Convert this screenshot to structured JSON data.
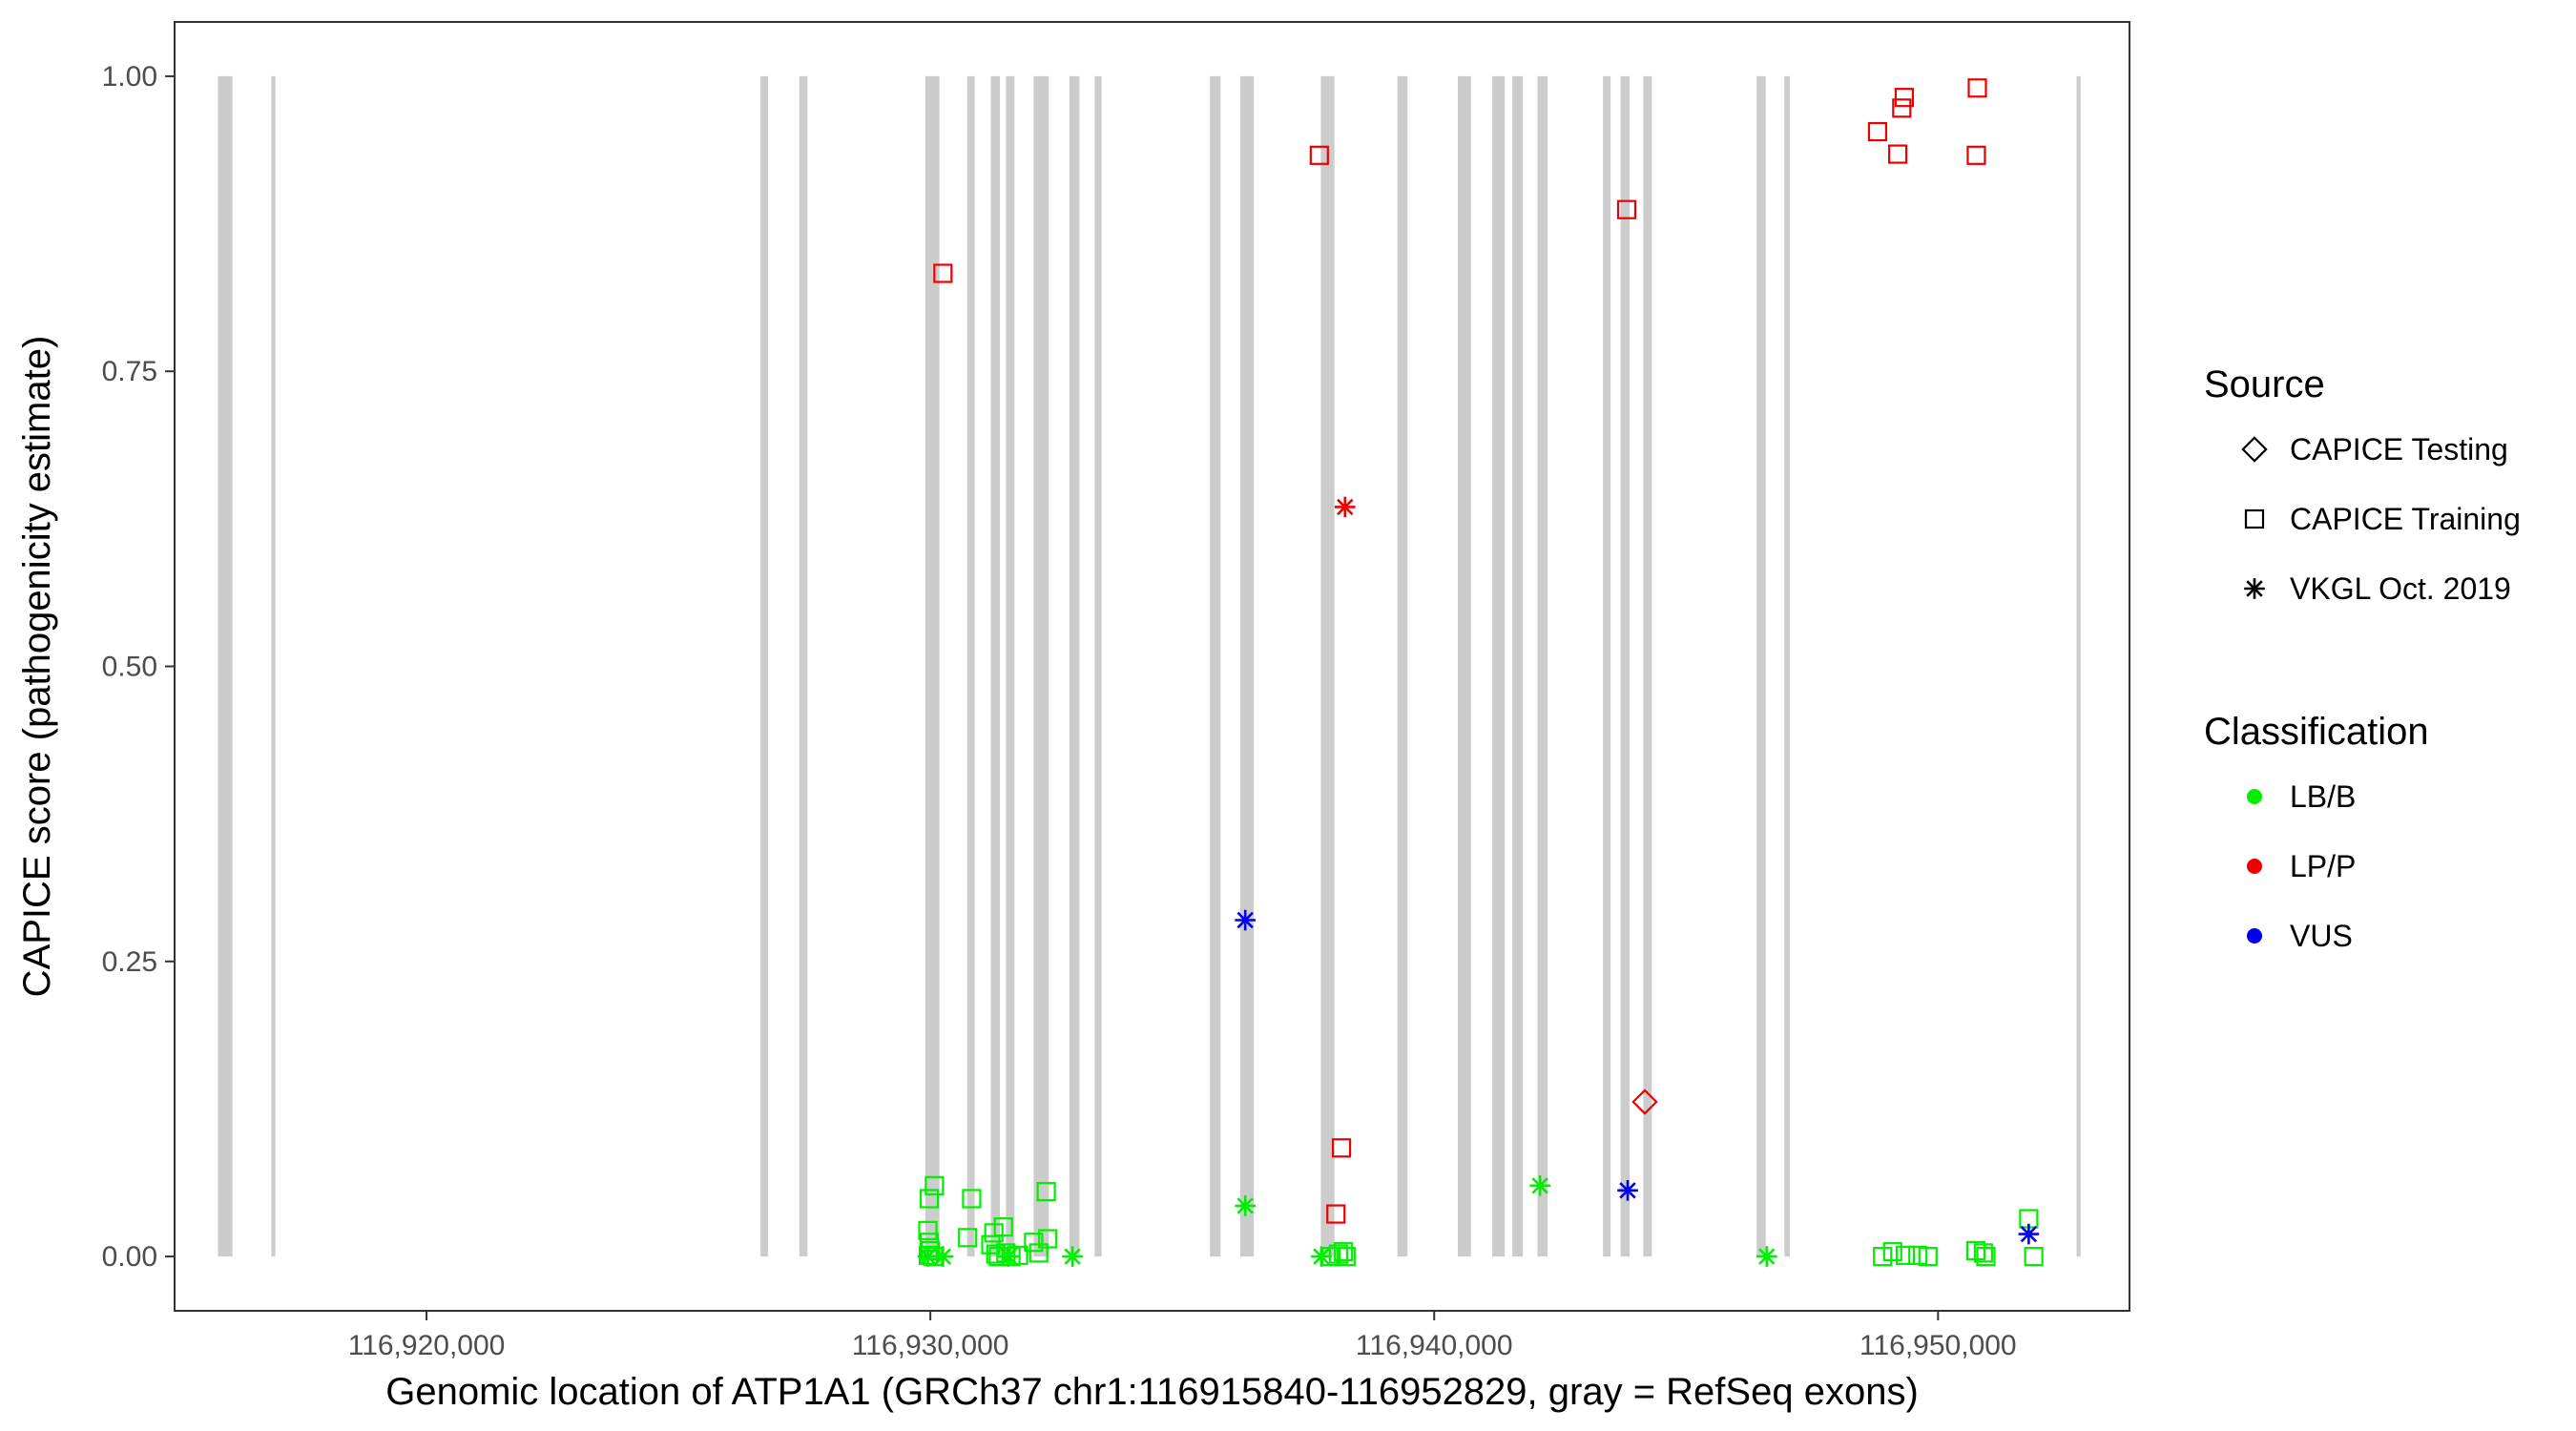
{
  "chart_data": {
    "type": "scatter",
    "title": "",
    "xlabel": "Genomic location of ATP1A1 (GRCh37 chr1:116915840-116952829, gray = RefSeq exons)",
    "ylabel": "CAPICE score (pathogenicity estimate)",
    "xlim": [
      116915000,
      116953800
    ],
    "ylim": [
      -0.046,
      1.046
    ],
    "x_ticks": [
      116920000,
      116930000,
      116940000,
      116950000
    ],
    "x_tick_labels": [
      "116,920,000",
      "116,930,000",
      "116,940,000",
      "116,950,000"
    ],
    "y_ticks": [
      0,
      0.25,
      0.5,
      0.75,
      1.0
    ],
    "y_tick_labels": [
      "0.00",
      "0.25",
      "0.50",
      "0.75",
      "1.00"
    ],
    "grid": false,
    "exons": [
      [
        116915860,
        116916150
      ],
      [
        116916920,
        116917000
      ],
      [
        116926630,
        116926780
      ],
      [
        116927400,
        116927560
      ],
      [
        116929900,
        116930180
      ],
      [
        116930730,
        116930880
      ],
      [
        116931200,
        116931380
      ],
      [
        116931500,
        116931670
      ],
      [
        116932050,
        116932350
      ],
      [
        116932760,
        116932960
      ],
      [
        116933260,
        116933400
      ],
      [
        116935550,
        116935760
      ],
      [
        116936150,
        116936420
      ],
      [
        116937750,
        116938020
      ],
      [
        116939270,
        116939470
      ],
      [
        116940470,
        116940730
      ],
      [
        116941150,
        116941400
      ],
      [
        116941550,
        116941760
      ],
      [
        116942050,
        116942250
      ],
      [
        116943350,
        116943500
      ],
      [
        116943700,
        116943880
      ],
      [
        116944150,
        116944320
      ],
      [
        116946400,
        116946580
      ],
      [
        116946950,
        116947060
      ],
      [
        116952750,
        116952829
      ]
    ],
    "exon_color": "#cccccc",
    "legend": {
      "placement": "right",
      "source_title": "Source",
      "source_items": [
        {
          "label": "CAPICE Testing",
          "shape": "diamond"
        },
        {
          "label": "CAPICE Training",
          "shape": "square"
        },
        {
          "label": "VKGL Oct. 2019",
          "shape": "asterisk"
        }
      ],
      "class_title": "Classification",
      "class_items": [
        {
          "label": "LB/B",
          "color": "#00ee00"
        },
        {
          "label": "LP/P",
          "color": "#ee0000"
        },
        {
          "label": "VUS",
          "color": "#0000ee"
        }
      ]
    },
    "series": [
      {
        "source": "CAPICE Testing",
        "classification": "LP/P",
        "shape": "diamond",
        "color": "#ee0000",
        "points": [
          [
            116944180,
            0.131
          ]
        ]
      },
      {
        "source": "CAPICE Training",
        "classification": "LP/P",
        "shape": "square",
        "color": "#ee0000",
        "points": [
          [
            116930250,
            0.833
          ],
          [
            116937720,
            0.933
          ],
          [
            116938160,
            0.092
          ],
          [
            116938050,
            0.036
          ],
          [
            116943820,
            0.887
          ],
          [
            116948800,
            0.953
          ],
          [
            116949200,
            0.934
          ],
          [
            116949280,
            0.973
          ],
          [
            116949330,
            0.982
          ],
          [
            116950780,
            0.99
          ],
          [
            116950760,
            0.933
          ]
        ]
      },
      {
        "source": "CAPICE Training",
        "classification": "LB/B",
        "shape": "square",
        "color": "#00ee00",
        "points": [
          [
            116929980,
            0.049
          ],
          [
            116930080,
            0.06
          ],
          [
            116929950,
            0.022
          ],
          [
            116929980,
            0.012
          ],
          [
            116930000,
            0.005
          ],
          [
            116929960,
            0.001
          ],
          [
            116930060,
            0.0
          ],
          [
            116930820,
            0.049
          ],
          [
            116930740,
            0.016
          ],
          [
            116931260,
            0.02
          ],
          [
            116931450,
            0.025
          ],
          [
            116931200,
            0.01
          ],
          [
            116931300,
            0.002
          ],
          [
            116931500,
            0.003
          ],
          [
            116931600,
            0.0
          ],
          [
            116931750,
            0.001
          ],
          [
            116931350,
            0.0
          ],
          [
            116932050,
            0.012
          ],
          [
            116932300,
            0.055
          ],
          [
            116932330,
            0.015
          ],
          [
            116932150,
            0.003
          ],
          [
            116937950,
            0.0
          ],
          [
            116938100,
            0.002
          ],
          [
            116938200,
            0.004
          ],
          [
            116938250,
            0.0
          ],
          [
            116948900,
            0.0
          ],
          [
            116949100,
            0.004
          ],
          [
            116949350,
            0.001
          ],
          [
            116949600,
            0.001
          ],
          [
            116949800,
            0.0
          ],
          [
            116950750,
            0.005
          ],
          [
            116950900,
            0.003
          ],
          [
            116950950,
            0.0
          ],
          [
            116951800,
            0.032
          ],
          [
            116951900,
            0.0
          ]
        ]
      },
      {
        "source": "VKGL Oct. 2019",
        "classification": "LP/P",
        "shape": "asterisk",
        "color": "#ee0000",
        "points": [
          [
            116938230,
            0.635
          ]
        ]
      },
      {
        "source": "VKGL Oct. 2019",
        "classification": "VUS",
        "shape": "asterisk",
        "color": "#0000ee",
        "points": [
          [
            116936250,
            0.285
          ],
          [
            116943840,
            0.056
          ],
          [
            116951800,
            0.019
          ]
        ]
      },
      {
        "source": "VKGL Oct. 2019",
        "classification": "LB/B",
        "shape": "asterisk",
        "color": "#00ee00",
        "points": [
          [
            116936250,
            0.043
          ],
          [
            116942100,
            0.06
          ],
          [
            116929950,
            0.0
          ],
          [
            116930250,
            0.0
          ],
          [
            116931550,
            0.0
          ],
          [
            116932820,
            0.0
          ],
          [
            116937760,
            0.0
          ],
          [
            116946600,
            0.0
          ]
        ]
      }
    ]
  }
}
